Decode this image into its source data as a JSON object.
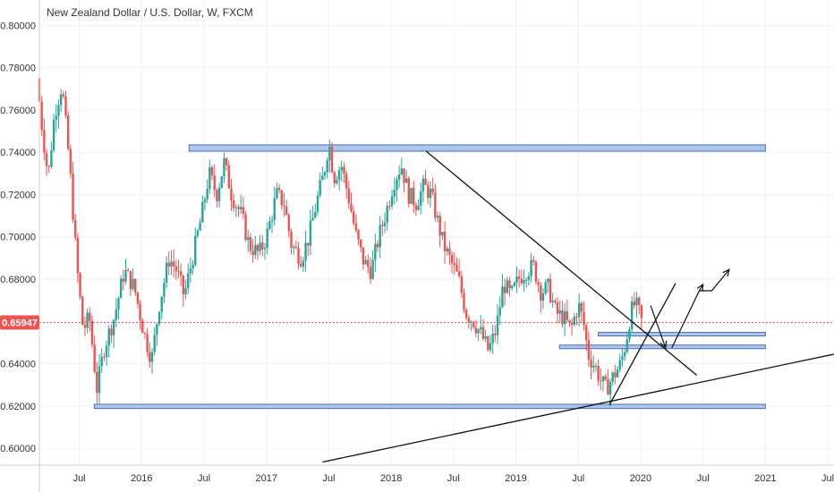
{
  "chart_data": {
    "type": "candlestick",
    "title": "New Zealand Dollar / U.S. Dollar, W, FXCM",
    "xlabel": "",
    "ylabel": "",
    "ylim": [
      0.592,
      0.812
    ],
    "x_range": [
      2015.18,
      2021.55
    ],
    "grid": true,
    "y_ticks": [
      0.8,
      0.78,
      0.76,
      0.74,
      0.72,
      0.7,
      0.68,
      0.66,
      0.64,
      0.62,
      0.6
    ],
    "y_tick_labels": [
      "0.80000",
      "0.78000",
      "0.76000",
      "0.74000",
      "0.72000",
      "0.70000",
      "0.68000",
      "0.64000",
      "0.62000",
      "0.60000"
    ],
    "y_tick_label_values": [
      0.8,
      0.78,
      0.76,
      0.74,
      0.72,
      0.7,
      0.68,
      0.64,
      0.62,
      0.6
    ],
    "x_tick_labels": [
      {
        "x": 2015.5,
        "label": "Jul"
      },
      {
        "x": 2016.0,
        "label": "2016"
      },
      {
        "x": 2016.5,
        "label": "Jul"
      },
      {
        "x": 2017.0,
        "label": "2017"
      },
      {
        "x": 2017.5,
        "label": "Jul"
      },
      {
        "x": 2018.0,
        "label": "2018"
      },
      {
        "x": 2018.5,
        "label": "Jul"
      },
      {
        "x": 2019.0,
        "label": "2019"
      },
      {
        "x": 2019.5,
        "label": "Jul"
      },
      {
        "x": 2020.0,
        "label": "2020"
      },
      {
        "x": 2020.5,
        "label": "Jul"
      },
      {
        "x": 2021.0,
        "label": "2021"
      },
      {
        "x": 2021.5,
        "label": "Jul"
      }
    ],
    "current_price": {
      "value": 0.65947,
      "label": "0.65947"
    },
    "up_color": "#26a69a",
    "down_color": "#ef5350",
    "price_keypoints": [
      [
        2015.18,
        0.775
      ],
      [
        2015.22,
        0.752
      ],
      [
        2015.27,
        0.728
      ],
      [
        2015.32,
        0.758
      ],
      [
        2015.38,
        0.772
      ],
      [
        2015.44,
        0.735
      ],
      [
        2015.5,
        0.686
      ],
      [
        2015.55,
        0.656
      ],
      [
        2015.6,
        0.662
      ],
      [
        2015.66,
        0.628
      ],
      [
        2015.72,
        0.648
      ],
      [
        2015.8,
        0.662
      ],
      [
        2015.88,
        0.684
      ],
      [
        2015.96,
        0.676
      ],
      [
        2016.04,
        0.654
      ],
      [
        2016.1,
        0.642
      ],
      [
        2016.16,
        0.668
      ],
      [
        2016.24,
        0.69
      ],
      [
        2016.3,
        0.684
      ],
      [
        2016.36,
        0.672
      ],
      [
        2016.42,
        0.688
      ],
      [
        2016.5,
        0.71
      ],
      [
        2016.56,
        0.73
      ],
      [
        2016.62,
        0.72
      ],
      [
        2016.68,
        0.735
      ],
      [
        2016.74,
        0.72
      ],
      [
        2016.82,
        0.71
      ],
      [
        2016.88,
        0.696
      ],
      [
        2016.96,
        0.692
      ],
      [
        2017.02,
        0.7
      ],
      [
        2017.1,
        0.72
      ],
      [
        2017.16,
        0.716
      ],
      [
        2017.22,
        0.696
      ],
      [
        2017.3,
        0.69
      ],
      [
        2017.36,
        0.7
      ],
      [
        2017.42,
        0.716
      ],
      [
        2017.48,
        0.73
      ],
      [
        2017.52,
        0.745
      ],
      [
        2017.56,
        0.728
      ],
      [
        2017.62,
        0.734
      ],
      [
        2017.68,
        0.718
      ],
      [
        2017.74,
        0.7
      ],
      [
        2017.8,
        0.688
      ],
      [
        2017.86,
        0.684
      ],
      [
        2017.92,
        0.7
      ],
      [
        2017.98,
        0.712
      ],
      [
        2018.04,
        0.726
      ],
      [
        2018.1,
        0.734
      ],
      [
        2018.16,
        0.72
      ],
      [
        2018.22,
        0.716
      ],
      [
        2018.28,
        0.724
      ],
      [
        2018.34,
        0.72
      ],
      [
        2018.38,
        0.71
      ],
      [
        2018.44,
        0.696
      ],
      [
        2018.5,
        0.688
      ],
      [
        2018.56,
        0.68
      ],
      [
        2018.62,
        0.664
      ],
      [
        2018.68,
        0.66
      ],
      [
        2018.74,
        0.654
      ],
      [
        2018.8,
        0.646
      ],
      [
        2018.86,
        0.656
      ],
      [
        2018.92,
        0.678
      ],
      [
        2018.98,
        0.672
      ],
      [
        2019.04,
        0.68
      ],
      [
        2019.1,
        0.684
      ],
      [
        2019.16,
        0.686
      ],
      [
        2019.22,
        0.674
      ],
      [
        2019.28,
        0.676
      ],
      [
        2019.34,
        0.664
      ],
      [
        2019.4,
        0.662
      ],
      [
        2019.46,
        0.656
      ],
      [
        2019.52,
        0.668
      ],
      [
        2019.56,
        0.66
      ],
      [
        2019.6,
        0.644
      ],
      [
        2019.66,
        0.638
      ],
      [
        2019.7,
        0.632
      ],
      [
        2019.74,
        0.628
      ],
      [
        2019.78,
        0.632
      ],
      [
        2019.82,
        0.636
      ],
      [
        2019.86,
        0.64
      ],
      [
        2019.9,
        0.65
      ],
      [
        2019.94,
        0.664
      ],
      [
        2019.97,
        0.668
      ],
      [
        2020.0,
        0.666
      ],
      [
        2020.02,
        0.66
      ]
    ],
    "zones": [
      {
        "x0": 2016.38,
        "x1": 2021.0,
        "y0": 0.7405,
        "y1": 0.7435
      },
      {
        "x0": 2015.62,
        "x1": 2021.0,
        "y0": 0.6188,
        "y1": 0.6208
      },
      {
        "x0": 2019.35,
        "x1": 2021.0,
        "y0": 0.6472,
        "y1": 0.6488
      },
      {
        "x0": 2019.66,
        "x1": 2021.0,
        "y0": 0.6533,
        "y1": 0.6548
      }
    ],
    "trendlines": [
      {
        "x0": 2018.28,
        "y0": 0.7405,
        "x1": 2020.45,
        "y1": 0.6345
      },
      {
        "x0": 2017.45,
        "y0": 0.5935,
        "x1": 2021.55,
        "y1": 0.6445
      },
      {
        "x0": 2019.75,
        "y0": 0.6205,
        "x1": 2020.28,
        "y1": 0.678
      }
    ],
    "arrows": [
      {
        "points": [
          [
            2020.08,
            0.6675
          ],
          [
            2020.2,
            0.6475
          ]
        ],
        "head": true
      },
      {
        "points": [
          [
            2020.25,
            0.6475
          ],
          [
            2020.47,
            0.6745
          ],
          [
            2020.57,
            0.6745
          ],
          [
            2020.71,
            0.6845
          ]
        ],
        "head": true
      },
      {
        "points": [
          [
            2020.47,
            0.6745
          ],
          [
            2020.5,
            0.6775
          ]
        ],
        "head": true
      }
    ]
  }
}
